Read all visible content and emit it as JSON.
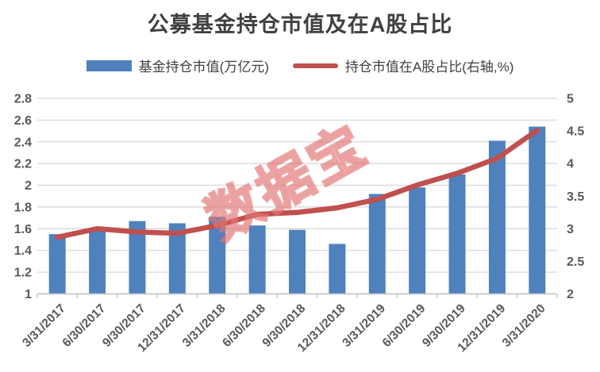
{
  "title": "公募基金持仓市值及在A股占比",
  "watermark": "数据宝",
  "colors": {
    "bar": "#4F81BD",
    "line": "#C0504D",
    "grid": "#D9D9D9",
    "axis_line": "#BFBFBF",
    "tick_label": "#595959",
    "title_text": "#404040",
    "legend_text": "#404040",
    "watermark_fill": "rgba(235,150,150,0.18)"
  },
  "legend": {
    "items": [
      {
        "label": "基金持仓市值(万亿元)",
        "swatch": "bar"
      },
      {
        "label": "持仓市值在A股占比(右轴,%)",
        "swatch": "line"
      }
    ]
  },
  "chart_data": {
    "type": "combo",
    "title": "公募基金持仓市值及在A股占比",
    "categories": [
      "3/31/2017",
      "6/30/2017",
      "9/30/2017",
      "12/31/2017",
      "3/31/2018",
      "6/30/2018",
      "9/30/2018",
      "12/31/2018",
      "3/31/2019",
      "6/30/2019",
      "9/30/2019",
      "12/31/2019",
      "3/31/2020"
    ],
    "series": [
      {
        "name": "基金持仓市值(万亿元)",
        "type": "bar",
        "axis": "left",
        "values": [
          1.55,
          1.59,
          1.67,
          1.65,
          1.71,
          1.63,
          1.59,
          1.46,
          1.92,
          1.98,
          2.1,
          2.41,
          2.54
        ]
      },
      {
        "name": "持仓市值在A股占比(右轴,%)",
        "type": "line",
        "axis": "right",
        "values": [
          2.87,
          3.0,
          2.95,
          2.93,
          3.05,
          3.22,
          3.25,
          3.32,
          3.45,
          3.67,
          3.85,
          4.08,
          4.51
        ]
      }
    ],
    "left_axis": {
      "min": 1,
      "max": 2.8,
      "step": 0.2
    },
    "right_axis": {
      "min": 2,
      "max": 5,
      "step": 0.5
    },
    "grid": true,
    "legend_position": "top"
  }
}
